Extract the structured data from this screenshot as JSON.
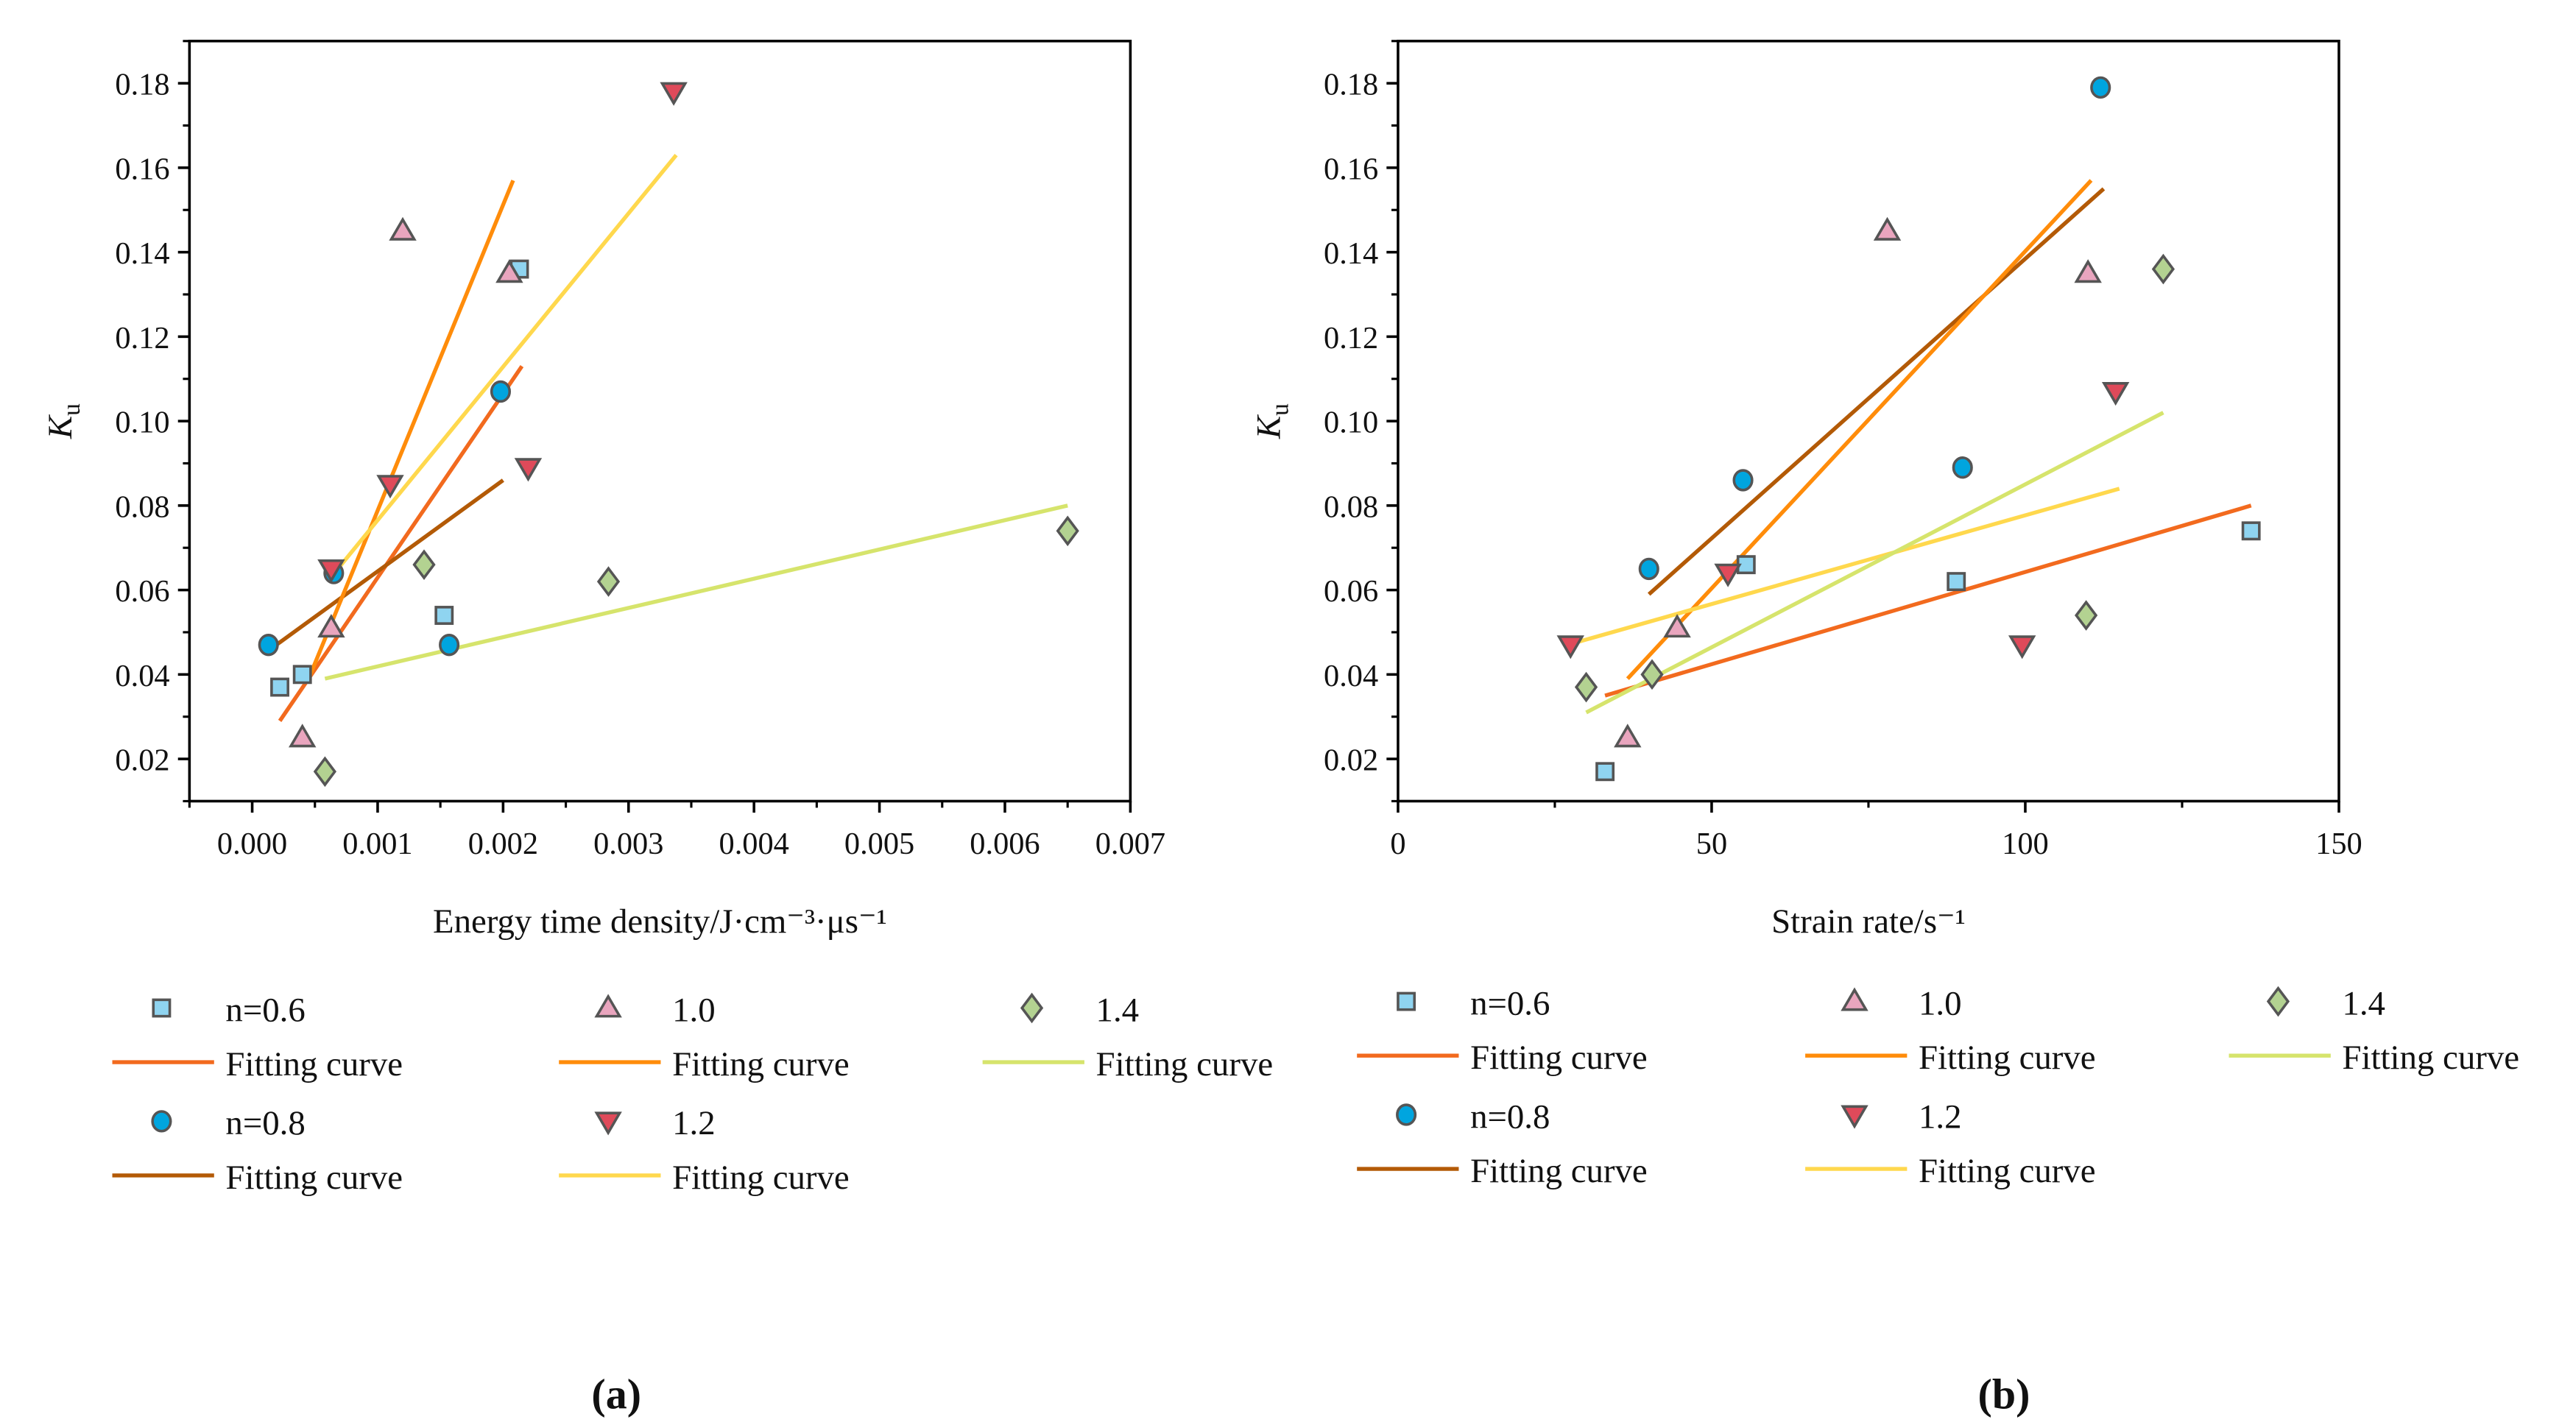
{
  "colors": {
    "n06": "#f26a1e",
    "n08": "#b35a06",
    "n10": "#ff8c0a",
    "n12": "#ffd84d",
    "n14": "#d6e46c",
    "m06": "#8fd4f0",
    "m08": "#00a5df",
    "m10": "#e9a5be",
    "m12": "#df4a5a",
    "m14": "#b3d291",
    "marker_stroke": "#555555"
  },
  "series_meta": [
    {
      "key": "n06",
      "label": "n=0.6",
      "marker": "square"
    },
    {
      "key": "n08",
      "label": "n=0.8",
      "marker": "circle"
    },
    {
      "key": "n10",
      "label": "1.0",
      "marker": "triangle-up"
    },
    {
      "key": "n12",
      "label": "1.2",
      "marker": "triangle-down"
    },
    {
      "key": "n14",
      "label": "1.4",
      "marker": "diamond"
    }
  ],
  "fit_label": "Fitting curve",
  "chart_data": [
    {
      "type": "scatter",
      "caption": "(a)",
      "xlabel": "Energy time density/J·cm⁻³·μs⁻¹",
      "ylabel": "K",
      "ylabel_sub": "u",
      "xlim": [
        -0.0005,
        0.007
      ],
      "ylim": [
        0.01,
        0.19
      ],
      "xticks": [
        "0.000",
        "0.001",
        "0.002",
        "0.003",
        "0.004",
        "0.005",
        "0.006",
        "0.007"
      ],
      "yticks": [
        "0.02",
        "0.04",
        "0.06",
        "0.08",
        "0.10",
        "0.12",
        "0.14",
        "0.16",
        "0.18"
      ],
      "series": [
        {
          "key": "n06",
          "points": [
            [
              0.00022,
              0.037
            ],
            [
              0.0004,
              0.04
            ],
            [
              0.00153,
              0.054
            ],
            [
              0.00213,
              0.136
            ]
          ],
          "fit": [
            [
              0.00022,
              0.029
            ],
            [
              0.00215,
              0.113
            ]
          ]
        },
        {
          "key": "n08",
          "points": [
            [
              0.00013,
              0.047
            ],
            [
              0.00065,
              0.064
            ],
            [
              0.00157,
              0.047
            ],
            [
              0.00198,
              0.107
            ]
          ],
          "fit": [
            [
              0.0001,
              0.045
            ],
            [
              0.002,
              0.086
            ]
          ]
        },
        {
          "key": "n10",
          "points": [
            [
              0.0004,
              0.025
            ],
            [
              0.00063,
              0.051
            ],
            [
              0.0012,
              0.145
            ],
            [
              0.00205,
              0.135
            ]
          ],
          "fit": [
            [
              0.00045,
              0.039
            ],
            [
              0.00208,
              0.157
            ]
          ]
        },
        {
          "key": "n12",
          "points": [
            [
              0.00063,
              0.065
            ],
            [
              0.0011,
              0.085
            ],
            [
              0.0022,
              0.089
            ],
            [
              0.00336,
              0.178
            ]
          ],
          "fit": [
            [
              0.0006,
              0.062
            ],
            [
              0.00338,
              0.163
            ]
          ]
        },
        {
          "key": "n14",
          "points": [
            [
              0.00058,
              0.017
            ],
            [
              0.00137,
              0.066
            ],
            [
              0.00284,
              0.062
            ],
            [
              0.0065,
              0.074
            ]
          ],
          "fit": [
            [
              0.00058,
              0.039
            ],
            [
              0.0065,
              0.08
            ]
          ]
        }
      ]
    },
    {
      "type": "scatter",
      "caption": "(b)",
      "xlabel": "Strain rate/s⁻¹",
      "ylabel": "K",
      "ylabel_sub": "u",
      "xlim": [
        0,
        150
      ],
      "ylim": [
        0.01,
        0.19
      ],
      "xticks": [
        "0",
        "50",
        "100",
        "150"
      ],
      "yticks": [
        "0.02",
        "0.04",
        "0.06",
        "0.08",
        "0.10",
        "0.12",
        "0.14",
        "0.16",
        "0.18"
      ],
      "series": [
        {
          "key": "n06",
          "points": [
            [
              33,
              0.017
            ],
            [
              55.5,
              0.066
            ],
            [
              89,
              0.062
            ],
            [
              136,
              0.074
            ]
          ],
          "fit": [
            [
              33,
              0.035
            ],
            [
              136,
              0.08
            ]
          ]
        },
        {
          "key": "n08",
          "points": [
            [
              40,
              0.065
            ],
            [
              55,
              0.086
            ],
            [
              90,
              0.089
            ],
            [
              112,
              0.179
            ]
          ],
          "fit": [
            [
              40,
              0.059
            ],
            [
              112.5,
              0.155
            ]
          ]
        },
        {
          "key": "n10",
          "points": [
            [
              36.6,
              0.025
            ],
            [
              44.5,
              0.051
            ],
            [
              78,
              0.145
            ],
            [
              110,
              0.135
            ]
          ],
          "fit": [
            [
              36.6,
              0.039
            ],
            [
              110.5,
              0.157
            ]
          ]
        },
        {
          "key": "n12",
          "points": [
            [
              27.5,
              0.047
            ],
            [
              52.6,
              0.064
            ],
            [
              99.5,
              0.047
            ],
            [
              114.4,
              0.107
            ]
          ],
          "fit": [
            [
              27,
              0.047
            ],
            [
              115,
              0.084
            ]
          ]
        },
        {
          "key": "n14",
          "points": [
            [
              30,
              0.037
            ],
            [
              40.5,
              0.04
            ],
            [
              109.7,
              0.054
            ],
            [
              122,
              0.136
            ]
          ],
          "fit": [
            [
              30,
              0.031
            ],
            [
              122,
              0.102
            ]
          ]
        }
      ]
    }
  ]
}
